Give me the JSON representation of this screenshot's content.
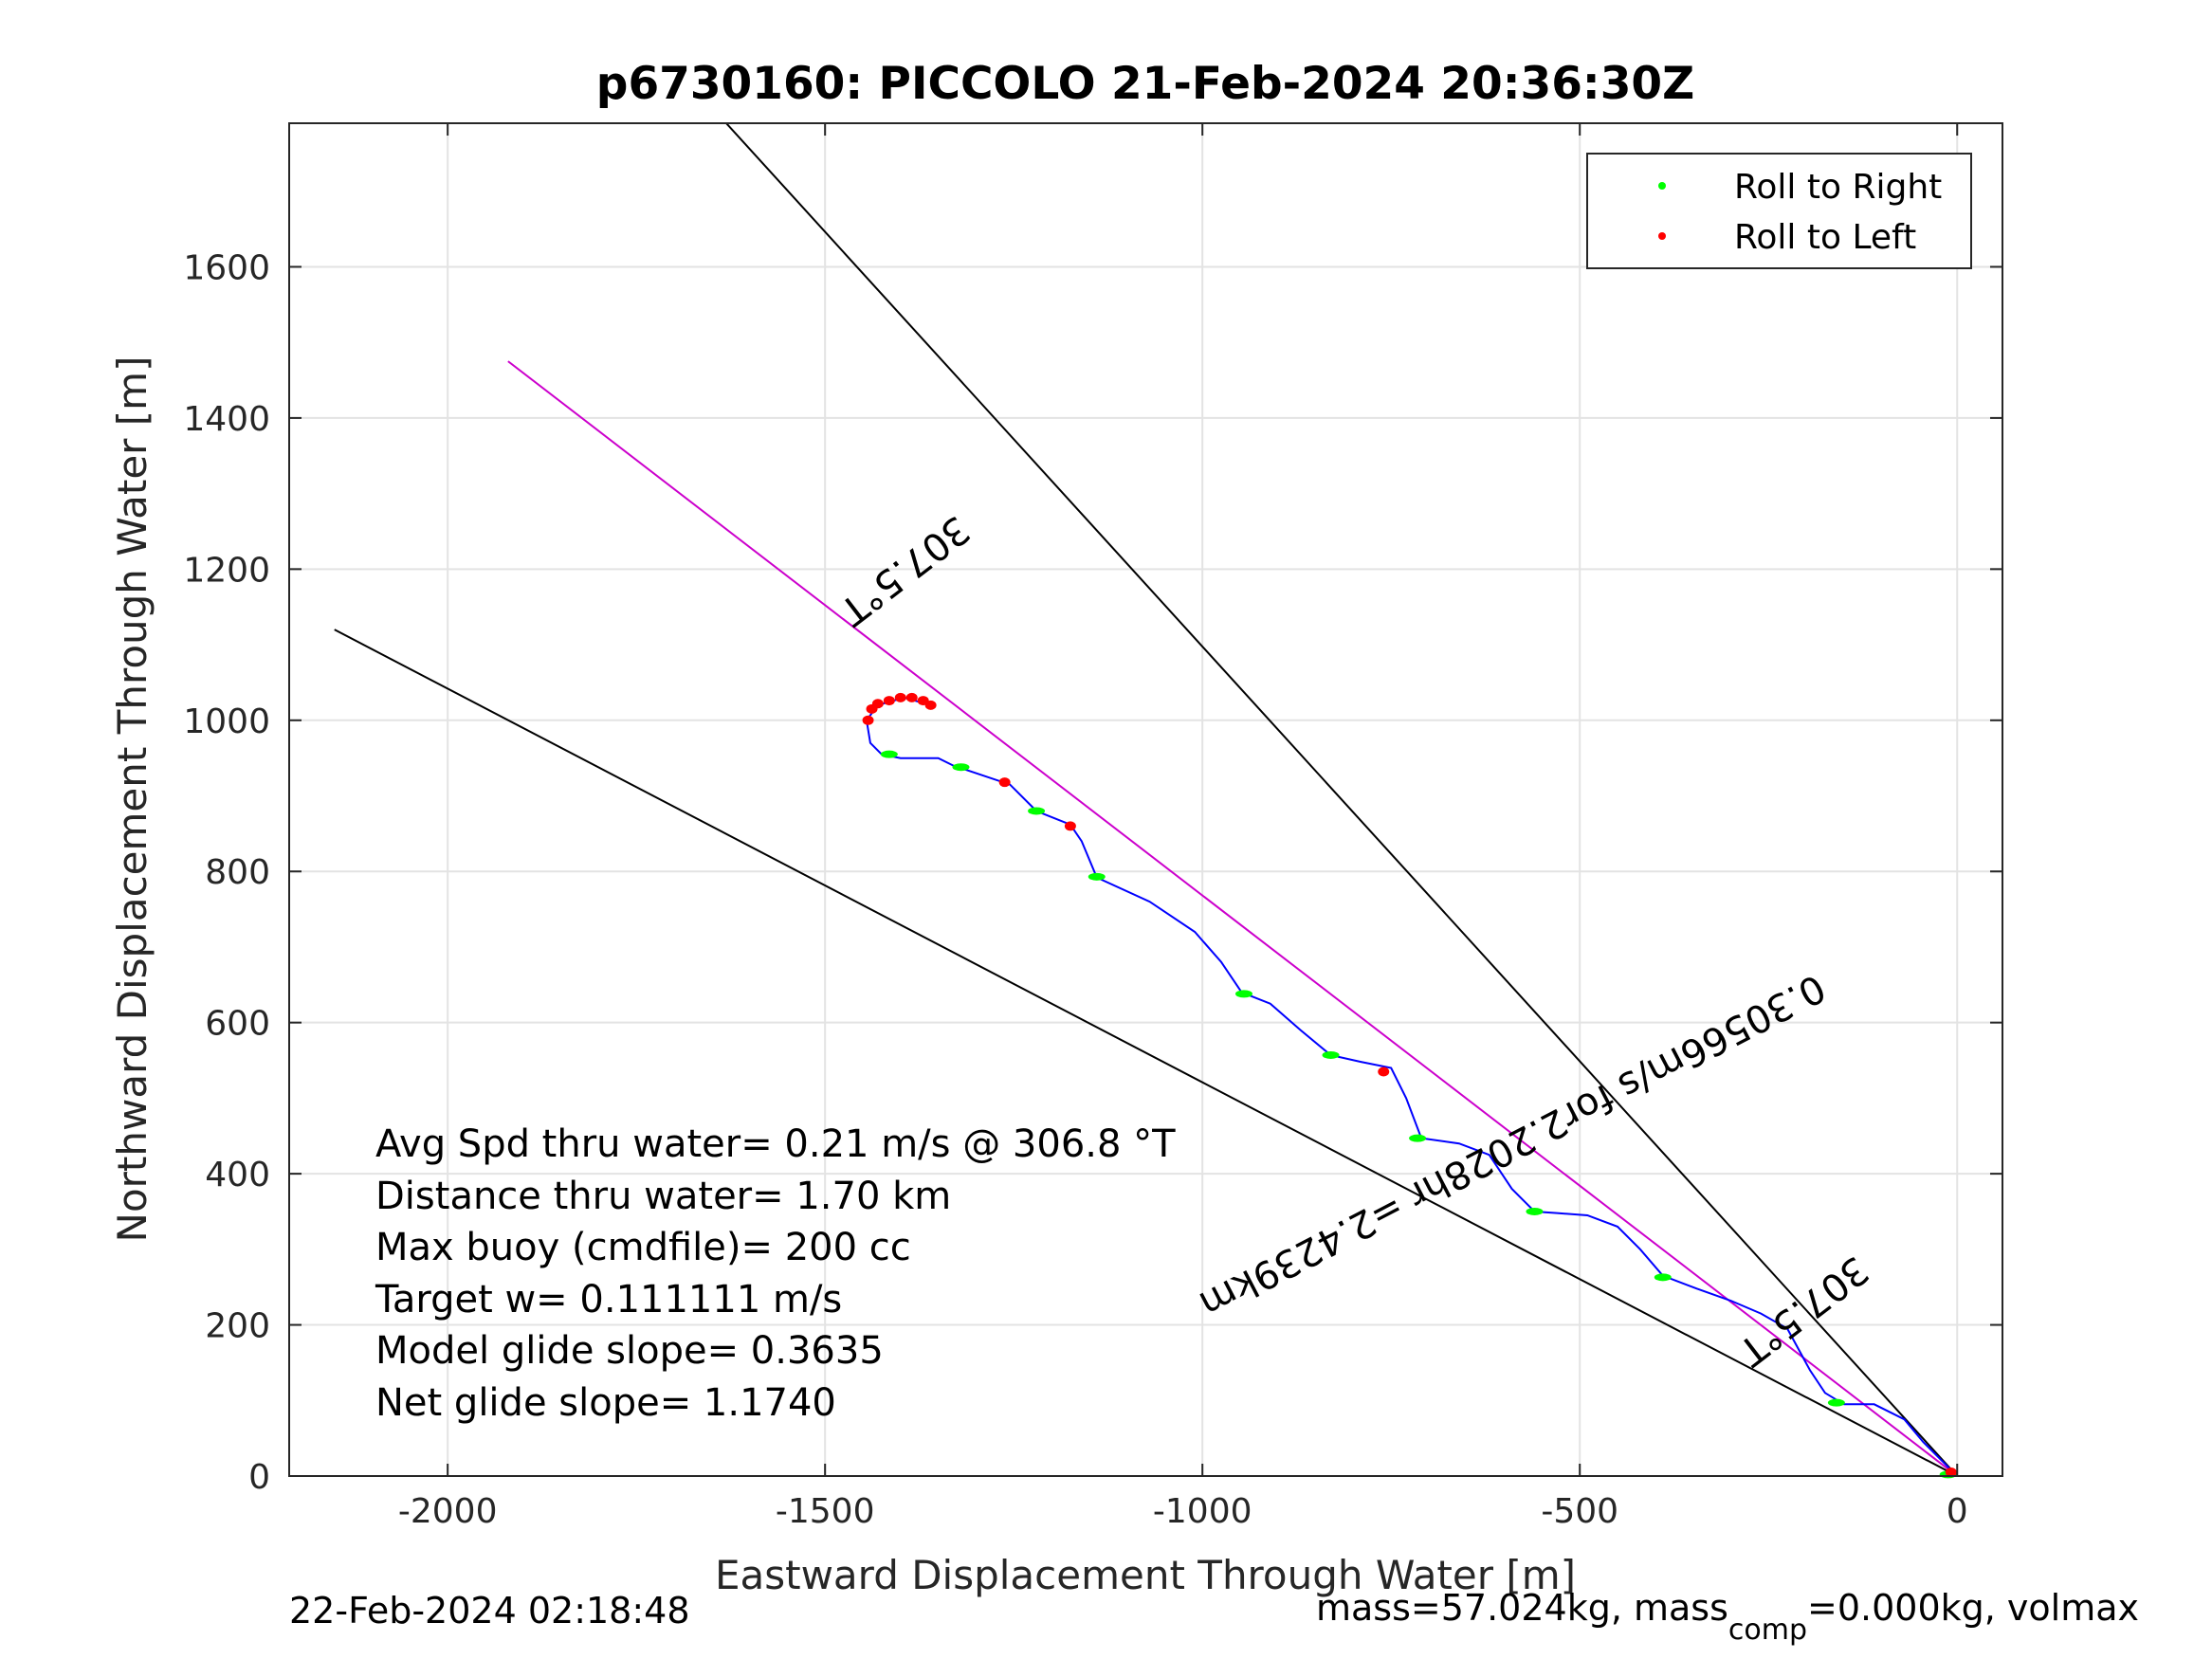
{
  "chart_data": {
    "type": "line",
    "title": "p6730160: PICCOLO 21-Feb-2024 20:36:30Z",
    "xlabel": "Eastward Displacement Through Water [m]",
    "ylabel": "Northward Displacement Through Water [m]",
    "xlim": [
      -2210,
      60
    ],
    "ylim": [
      0,
      1790
    ],
    "xticks": [
      -2000,
      -1500,
      -1000,
      -500,
      0
    ],
    "yticks": [
      0,
      200,
      400,
      600,
      800,
      1000,
      1200,
      1400,
      1600
    ],
    "grid": true,
    "legend_position": "top-right",
    "legend": [
      {
        "label": "Roll to Right",
        "color": "#00ff00"
      },
      {
        "label": "Roll to Left",
        "color": "#ff0000"
      }
    ],
    "track": {
      "name": "track",
      "color": "#0000ff",
      "points": [
        [
          0,
          0
        ],
        [
          -20,
          20
        ],
        [
          -45,
          45
        ],
        [
          -70,
          75
        ],
        [
          -110,
          95
        ],
        [
          -150,
          95
        ],
        [
          -175,
          110
        ],
        [
          -195,
          140
        ],
        [
          -225,
          195
        ],
        [
          -260,
          215
        ],
        [
          -300,
          232
        ],
        [
          -345,
          248
        ],
        [
          -390,
          265
        ],
        [
          -420,
          300
        ],
        [
          -450,
          330
        ],
        [
          -490,
          345
        ],
        [
          -530,
          348
        ],
        [
          -560,
          350
        ],
        [
          -590,
          380
        ],
        [
          -620,
          425
        ],
        [
          -660,
          440
        ],
        [
          -710,
          447
        ],
        [
          -730,
          500
        ],
        [
          -750,
          540
        ],
        [
          -790,
          548
        ],
        [
          -830,
          557
        ],
        [
          -870,
          590
        ],
        [
          -910,
          625
        ],
        [
          -948,
          640
        ],
        [
          -975,
          680
        ],
        [
          -1010,
          720
        ],
        [
          -1070,
          760
        ],
        [
          -1140,
          792
        ],
        [
          -1160,
          840
        ],
        [
          -1175,
          862
        ],
        [
          -1220,
          880
        ],
        [
          -1255,
          915
        ],
        [
          -1300,
          930
        ],
        [
          -1330,
          940
        ],
        [
          -1350,
          950
        ],
        [
          -1400,
          950
        ],
        [
          -1425,
          955
        ],
        [
          -1440,
          970
        ],
        [
          -1445,
          1000
        ],
        [
          -1430,
          1020
        ],
        [
          -1395,
          1030
        ],
        [
          -1360,
          1020
        ]
      ]
    },
    "roll_right_points": [
      [
        -12,
        2
      ],
      [
        -160,
        97
      ],
      [
        -390,
        263
      ],
      [
        -560,
        350
      ],
      [
        -715,
        447
      ],
      [
        -830,
        557
      ],
      [
        -945,
        638
      ],
      [
        -1140,
        793
      ],
      [
        -1220,
        880
      ],
      [
        -1320,
        938
      ],
      [
        -1415,
        955
      ]
    ],
    "roll_left_points": [
      [
        -8,
        5
      ],
      [
        -760,
        535
      ],
      [
        -1175,
        860
      ],
      [
        -1262,
        918
      ],
      [
        -1443,
        1000
      ],
      [
        -1438,
        1015
      ],
      [
        -1430,
        1022
      ],
      [
        -1415,
        1026
      ],
      [
        -1400,
        1030
      ],
      [
        -1385,
        1030
      ],
      [
        -1370,
        1026
      ],
      [
        -1360,
        1020
      ]
    ],
    "direction_lines": [
      {
        "name": "heading-line-upper",
        "color": "#000000",
        "from": [
          0,
          0
        ],
        "to": [
          -1640,
          1800
        ]
      },
      {
        "name": "heading-line-lower",
        "color": "#000000",
        "from": [
          0,
          0
        ],
        "to": [
          -2150,
          1120
        ]
      },
      {
        "name": "heading-line-mid",
        "color": "#cc00cc",
        "from": [
          0,
          0
        ],
        "to": [
          -1920,
          1475
        ]
      }
    ],
    "annotations": {
      "heading_top": "307.5°T",
      "heading_bottom": "307.5°T",
      "speed_line": "0.30566m/s for2.2028hr =2.4239km"
    },
    "stats": {
      "avg_speed": "Avg Spd thru water=  0.21 m/s @ 306.8 °T",
      "distance": "Distance thru water=  1.70 km",
      "max_buoy": "Max buoy (cmdfile)= 200 cc",
      "target_w": "Target w= 0.111111 m/s",
      "model_glide": "Model glide slope= 0.3635",
      "net_glide": "Net glide slope= 1.1740"
    }
  },
  "footer": {
    "timestamp": "22-Feb-2024 02:18:48",
    "mass_prefix": "mass=57.024kg, mass",
    "mass_sub": "comp",
    "mass_suffix": "=0.000kg, volmax"
  }
}
